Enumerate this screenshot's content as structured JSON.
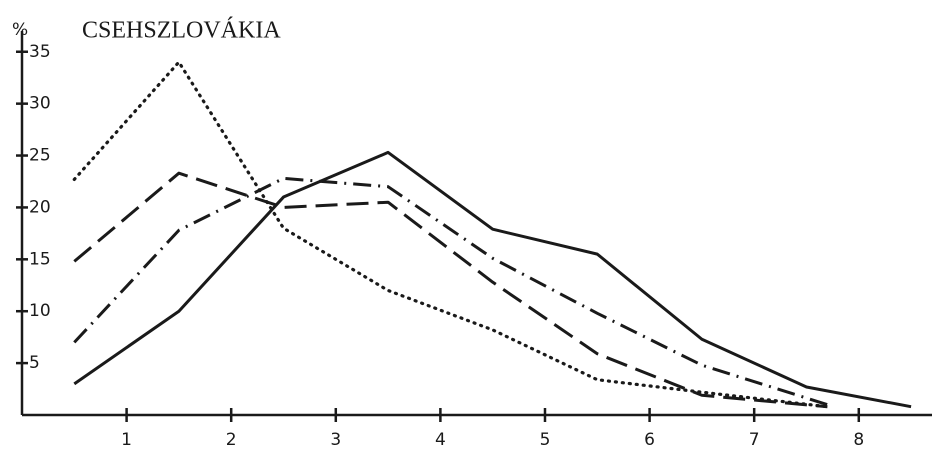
{
  "chart_data": {
    "type": "line",
    "title": "CSEHSZLOVÁKIA",
    "y_label": "%",
    "xlim": [
      0,
      8.7
    ],
    "ylim": [
      0,
      37
    ],
    "xticks": [
      1,
      2,
      3,
      4,
      5,
      6,
      7,
      8
    ],
    "yticks": [
      5,
      10,
      15,
      20,
      25,
      30,
      35
    ],
    "series": [
      {
        "color": "#1a1a1a",
        "dash": "solid",
        "x": [
          0.5,
          1.5,
          2.5,
          3.5,
          4.5,
          5.5,
          6.5,
          7.5,
          8.5
        ],
        "values": [
          3,
          10,
          21,
          25.3,
          17.9,
          15.5,
          7.3,
          2.7,
          0.8
        ]
      },
      {
        "color": "#1a1a1a",
        "dash": "dotted",
        "x": [
          0.5,
          1.5,
          2.5,
          3.5,
          4.5,
          5.5,
          6.5,
          7.7
        ],
        "values": [
          22.7,
          34,
          18,
          12,
          8.2,
          3.4,
          2.2,
          0.8
        ]
      },
      {
        "color": "#1a1a1a",
        "dash": "dashed",
        "x": [
          0.5,
          1.5,
          2.5,
          3.5,
          4.5,
          5.5,
          6.5,
          7.7
        ],
        "values": [
          14.8,
          23.3,
          20,
          20.5,
          12.8,
          5.9,
          1.9,
          0.8
        ]
      },
      {
        "color": "#1a1a1a",
        "dash": "dashdot",
        "x": [
          0.5,
          1.5,
          2.5,
          3.5,
          4.5,
          5.5,
          6.5,
          7.7
        ],
        "values": [
          7,
          17.8,
          22.8,
          22,
          15.1,
          9.8,
          4.8,
          1
        ]
      }
    ]
  }
}
